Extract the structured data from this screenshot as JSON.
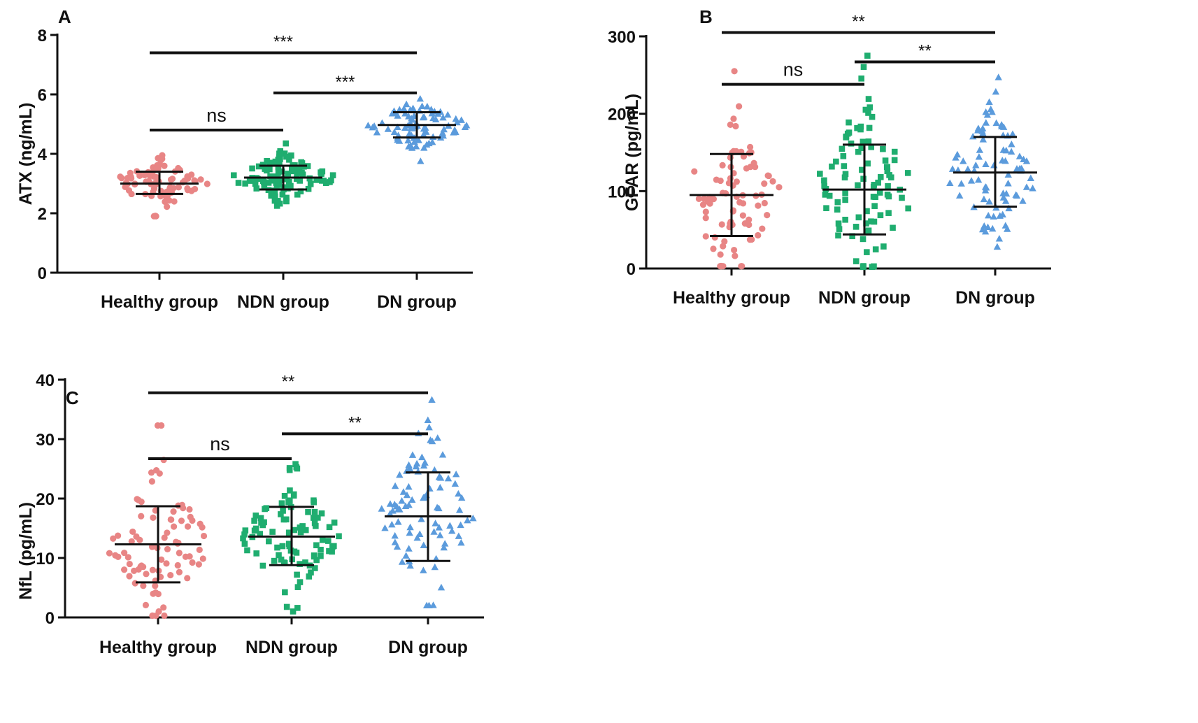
{
  "colors": {
    "healthy": "#e88585",
    "ndn": "#1fad6f",
    "dn": "#5b9bdc",
    "axis": "#111111"
  },
  "chart_data": [
    {
      "type": "scatter",
      "panel": "A",
      "ylabel": "ATX (ng/mL)",
      "ylim": [
        0,
        8
      ],
      "yticks": [
        {
          "v": 0,
          "label": "0"
        },
        {
          "v": 2,
          "label": "2"
        },
        {
          "v": 4,
          "label": "4"
        },
        {
          "v": 6,
          "label": "6"
        },
        {
          "v": 8,
          "label": "8"
        }
      ],
      "categories": [
        "Healthy group",
        "NDN group",
        "DN group"
      ],
      "series": [
        {
          "name": "Healthy group",
          "marker": "circle",
          "color": "#e88585",
          "n": 80,
          "mean": 3.0,
          "sd": 0.38,
          "min": 1.9,
          "max": 3.95,
          "err_low": 2.65,
          "err_high": 3.4,
          "center": 3.0
        },
        {
          "name": "NDN group",
          "marker": "square",
          "color": "#1fad6f",
          "n": 110,
          "mean": 3.2,
          "sd": 0.38,
          "min": 2.25,
          "max": 4.35,
          "err_low": 2.8,
          "err_high": 3.6,
          "center": 3.2
        },
        {
          "name": "DN group",
          "marker": "triangle",
          "color": "#5b9bdc",
          "n": 85,
          "mean": 4.97,
          "sd": 0.38,
          "min": 3.75,
          "max": 5.85,
          "err_low": 4.55,
          "err_high": 5.4,
          "center": 4.97
        }
      ],
      "significance": [
        {
          "from": 0,
          "to": 2,
          "y": 7.4,
          "label": "***"
        },
        {
          "from": 1,
          "to": 2,
          "y": 6.05,
          "label": "***"
        },
        {
          "from": 0,
          "to": 1,
          "y": 4.8,
          "label": "ns"
        }
      ]
    },
    {
      "type": "scatter",
      "panel": "B",
      "ylabel": "GFAR (pg/mL)",
      "ylim": [
        0,
        300
      ],
      "yticks": [
        {
          "v": 0,
          "label": "0"
        },
        {
          "v": 100,
          "label": "100"
        },
        {
          "v": 200,
          "label": "200"
        },
        {
          "v": 300,
          "label": "300"
        }
      ],
      "categories": [
        "Healthy group",
        "NDN group",
        "DN group"
      ],
      "series": [
        {
          "name": "Healthy group",
          "marker": "circle",
          "color": "#e88585",
          "n": 85,
          "mean": 95,
          "sd": 52,
          "min": 3,
          "max": 255,
          "err_low": 42,
          "err_high": 148,
          "center": 95
        },
        {
          "name": "NDN group",
          "marker": "square",
          "color": "#1fad6f",
          "n": 95,
          "mean": 102,
          "sd": 58,
          "min": 2,
          "max": 275,
          "err_low": 44,
          "err_high": 160,
          "center": 102
        },
        {
          "name": "DN group",
          "marker": "triangle",
          "color": "#5b9bdc",
          "n": 85,
          "mean": 124,
          "sd": 45,
          "min": 28,
          "max": 247,
          "err_low": 80,
          "err_high": 170,
          "center": 124
        }
      ],
      "significance": [
        {
          "from": 0,
          "to": 2,
          "y": 305,
          "label": "**"
        },
        {
          "from": 1,
          "to": 2,
          "y": 267,
          "label": "**"
        },
        {
          "from": 0,
          "to": 1,
          "y": 238,
          "label": "ns"
        }
      ]
    },
    {
      "type": "scatter",
      "panel": "C",
      "ylabel": "NfL (pg/mL)",
      "ylim": [
        0,
        40
      ],
      "yticks": [
        {
          "v": 0,
          "label": "0"
        },
        {
          "v": 10,
          "label": "10"
        },
        {
          "v": 20,
          "label": "20"
        },
        {
          "v": 30,
          "label": "30"
        },
        {
          "v": 40,
          "label": "40"
        }
      ],
      "categories": [
        "Healthy group",
        "NDN group",
        "DN group"
      ],
      "series": [
        {
          "name": "Healthy group",
          "marker": "circle",
          "color": "#e88585",
          "n": 85,
          "mean": 12.3,
          "sd": 6.4,
          "min": 0.3,
          "max": 32.3,
          "err_low": 5.9,
          "err_high": 18.7,
          "center": 12.3
        },
        {
          "name": "NDN group",
          "marker": "square",
          "color": "#1fad6f",
          "n": 95,
          "mean": 13.6,
          "sd": 4.9,
          "min": 1.0,
          "max": 25.8,
          "err_low": 8.8,
          "err_high": 18.6,
          "center": 13.6
        },
        {
          "name": "DN group",
          "marker": "triangle",
          "color": "#5b9bdc",
          "n": 90,
          "mean": 17.0,
          "sd": 7.5,
          "min": 2.0,
          "max": 36.6,
          "err_low": 9.5,
          "err_high": 24.4,
          "center": 17.0
        }
      ],
      "significance": [
        {
          "from": 0,
          "to": 2,
          "y": 37.8,
          "label": "**"
        },
        {
          "from": 1,
          "to": 2,
          "y": 30.9,
          "label": "**"
        },
        {
          "from": 0,
          "to": 1,
          "y": 26.7,
          "label": "ns"
        }
      ]
    }
  ]
}
